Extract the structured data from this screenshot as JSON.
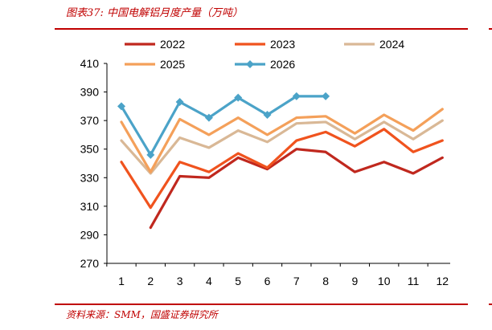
{
  "header": {
    "title": "图表37:  中国电解铝月度产量（万吨）"
  },
  "footer": {
    "source": "资料来源：SMM，国盛证券研究所"
  },
  "chart_data": {
    "type": "line",
    "title": "",
    "xlabel": "",
    "ylabel": "",
    "categories": [
      "1",
      "2",
      "3",
      "4",
      "5",
      "6",
      "7",
      "8",
      "9",
      "10",
      "11",
      "12"
    ],
    "ylim": [
      270,
      410
    ],
    "yticks": [
      270,
      290,
      310,
      330,
      350,
      370,
      390,
      410
    ],
    "grid": false,
    "legend_position": "top",
    "series": [
      {
        "name": "2022",
        "color": "#c0281e",
        "marker": "none",
        "values": [
          null,
          295,
          331,
          330,
          344,
          336,
          350,
          348,
          334,
          341,
          333,
          344
        ]
      },
      {
        "name": "2023",
        "color": "#f0531e",
        "marker": "none",
        "values": [
          341,
          309,
          341,
          334,
          347,
          337,
          356,
          362,
          352,
          364,
          348,
          356
        ]
      },
      {
        "name": "2024",
        "color": "#d9b896",
        "marker": "none",
        "values": [
          356,
          333,
          358,
          351,
          363,
          355,
          368,
          369,
          357,
          369,
          357,
          370
        ]
      },
      {
        "name": "2025",
        "color": "#f4a05a",
        "marker": "none",
        "values": [
          369,
          334,
          371,
          360,
          372,
          360,
          372,
          373,
          361,
          374,
          363,
          378
        ]
      },
      {
        "name": "2026",
        "color": "#4ba3c8",
        "marker": "diamond",
        "values": [
          380,
          346,
          383,
          372,
          386,
          374,
          387,
          387,
          null,
          null,
          null,
          null
        ]
      }
    ]
  }
}
